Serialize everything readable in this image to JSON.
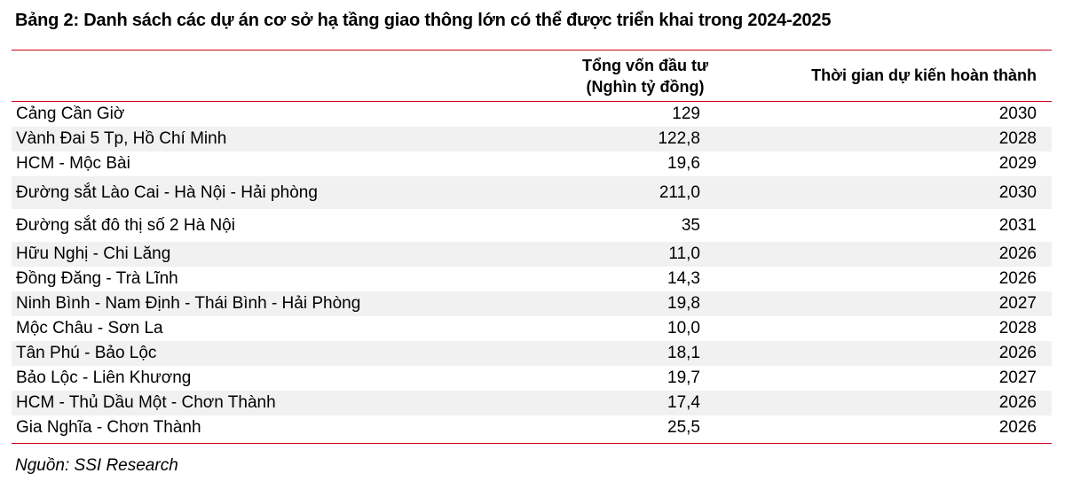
{
  "title": "Bảng 2: Danh sách các dự án cơ sở hạ tầng giao thông lớn có thể được triển khai trong 2024-2025",
  "columns": {
    "amount_line1": "Tổng vốn đầu tư",
    "amount_line2": "(Nghìn tỷ đồng)",
    "year": "Thời gian dự kiến hoàn thành"
  },
  "rows": [
    {
      "name": "Cảng Cần Giờ",
      "amount": "129",
      "year": "2030"
    },
    {
      "name": "Vành Đai 5 Tp, Hồ Chí Minh",
      "amount": "122,8",
      "year": "2028"
    },
    {
      "name": "HCM - Mộc Bài",
      "amount": "19,6",
      "year": "2029"
    },
    {
      "name": "Đường sắt Lào Cai - Hà Nội - Hải phòng",
      "amount": "211,0",
      "year": "2030"
    },
    {
      "name": "Đường sắt đô thị số 2 Hà Nội",
      "amount": "35",
      "year": "2031"
    },
    {
      "name": "Hữu Nghị - Chi Lăng",
      "amount": "11,0",
      "year": "2026"
    },
    {
      "name": "Đồng Đăng - Trà Lĩnh",
      "amount": "14,3",
      "year": "2026"
    },
    {
      "name": "Ninh Bình - Nam Định - Thái Bình - Hải Phòng",
      "amount": "19,8",
      "year": "2027"
    },
    {
      "name": "Mộc Châu - Sơn La",
      "amount": "10,0",
      "year": "2028"
    },
    {
      "name": "Tân Phú - Bảo Lộc",
      "amount": "18,1",
      "year": "2026"
    },
    {
      "name": "Bảo Lộc - Liên Khương",
      "amount": "19,7",
      "year": "2027"
    },
    {
      "name": "HCM - Thủ Dầu Một - Chơn Thành",
      "amount": "17,4",
      "year": "2026"
    },
    {
      "name": "Gia Nghĩa - Chơn Thành",
      "amount": "25,5",
      "year": "2026"
    }
  ],
  "source": "Nguồn: SSI Research",
  "colors": {
    "rule": "#d0021b",
    "shade": "#f1f1f1"
  }
}
